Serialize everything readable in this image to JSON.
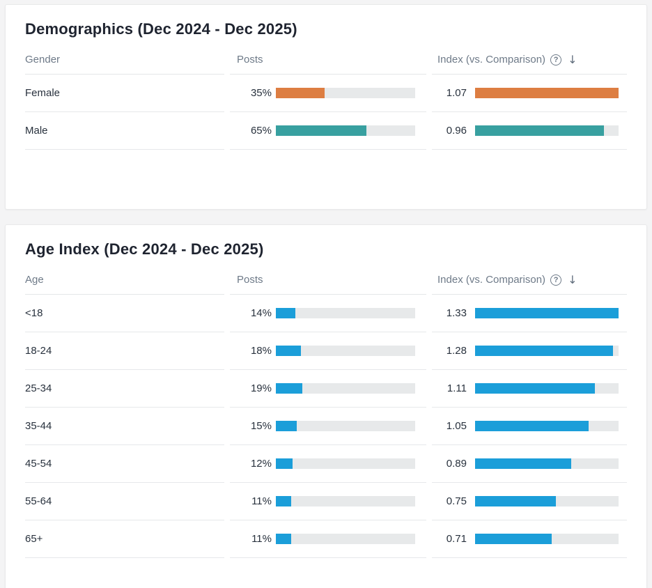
{
  "icons": {
    "help_glyph": "?",
    "sort_glyph": "↓"
  },
  "colors": {
    "female_bar": "#dd7e42",
    "male_bar": "#38a0a0",
    "age_bar": "#1b9ed9",
    "track": "#e7e9ea"
  },
  "cards": [
    {
      "title": "Demographics (Dec 2024 - Dec 2025)",
      "columns": {
        "label": "Gender",
        "posts": "Posts",
        "index": "Index (vs. Comparison)"
      },
      "rows": [
        {
          "label": "Female",
          "posts": "35%",
          "posts_fill": 0.35,
          "index": "1.07",
          "index_fill": 1.0,
          "color": "#dd7e42"
        },
        {
          "label": "Male",
          "posts": "65%",
          "posts_fill": 0.65,
          "index": "0.96",
          "index_fill": 0.897,
          "color": "#38a0a0"
        }
      ]
    },
    {
      "title": "Age Index (Dec 2024 - Dec 2025)",
      "columns": {
        "label": "Age",
        "posts": "Posts",
        "index": "Index (vs. Comparison)"
      },
      "rows": [
        {
          "label": "<18",
          "posts": "14%",
          "posts_fill": 0.14,
          "index": "1.33",
          "index_fill": 1.0,
          "color": "#1b9ed9"
        },
        {
          "label": "18-24",
          "posts": "18%",
          "posts_fill": 0.18,
          "index": "1.28",
          "index_fill": 0.962,
          "color": "#1b9ed9"
        },
        {
          "label": "25-34",
          "posts": "19%",
          "posts_fill": 0.19,
          "index": "1.11",
          "index_fill": 0.835,
          "color": "#1b9ed9"
        },
        {
          "label": "35-44",
          "posts": "15%",
          "posts_fill": 0.15,
          "index": "1.05",
          "index_fill": 0.789,
          "color": "#1b9ed9"
        },
        {
          "label": "45-54",
          "posts": "12%",
          "posts_fill": 0.12,
          "index": "0.89",
          "index_fill": 0.669,
          "color": "#1b9ed9"
        },
        {
          "label": "55-64",
          "posts": "11%",
          "posts_fill": 0.11,
          "index": "0.75",
          "index_fill": 0.564,
          "color": "#1b9ed9"
        },
        {
          "label": "65+",
          "posts": "11%",
          "posts_fill": 0.11,
          "index": "0.71",
          "index_fill": 0.534,
          "color": "#1b9ed9"
        }
      ]
    }
  ],
  "chart_data": [
    {
      "type": "bar",
      "orientation": "horizontal",
      "title": "Demographics (Dec 2024 - Dec 2025)",
      "categories": [
        "Female",
        "Male"
      ],
      "series": [
        {
          "name": "Posts",
          "unit": "%",
          "values": [
            35,
            65
          ],
          "scale_max": 100
        },
        {
          "name": "Index (vs. Comparison)",
          "values": [
            1.07,
            0.96
          ],
          "scale_max": 1.07
        }
      ],
      "bar_colors": [
        "#dd7e42",
        "#38a0a0"
      ],
      "legend": "none",
      "grid": false
    },
    {
      "type": "bar",
      "orientation": "horizontal",
      "title": "Age Index (Dec 2024 - Dec 2025)",
      "categories": [
        "<18",
        "18-24",
        "25-34",
        "35-44",
        "45-54",
        "55-64",
        "65+"
      ],
      "series": [
        {
          "name": "Posts",
          "unit": "%",
          "values": [
            14,
            18,
            19,
            15,
            12,
            11,
            11
          ],
          "scale_max": 100
        },
        {
          "name": "Index (vs. Comparison)",
          "values": [
            1.33,
            1.28,
            1.11,
            1.05,
            0.89,
            0.75,
            0.71
          ],
          "scale_max": 1.33
        }
      ],
      "bar_colors": [
        "#1b9ed9"
      ],
      "legend": "none",
      "grid": false
    }
  ]
}
